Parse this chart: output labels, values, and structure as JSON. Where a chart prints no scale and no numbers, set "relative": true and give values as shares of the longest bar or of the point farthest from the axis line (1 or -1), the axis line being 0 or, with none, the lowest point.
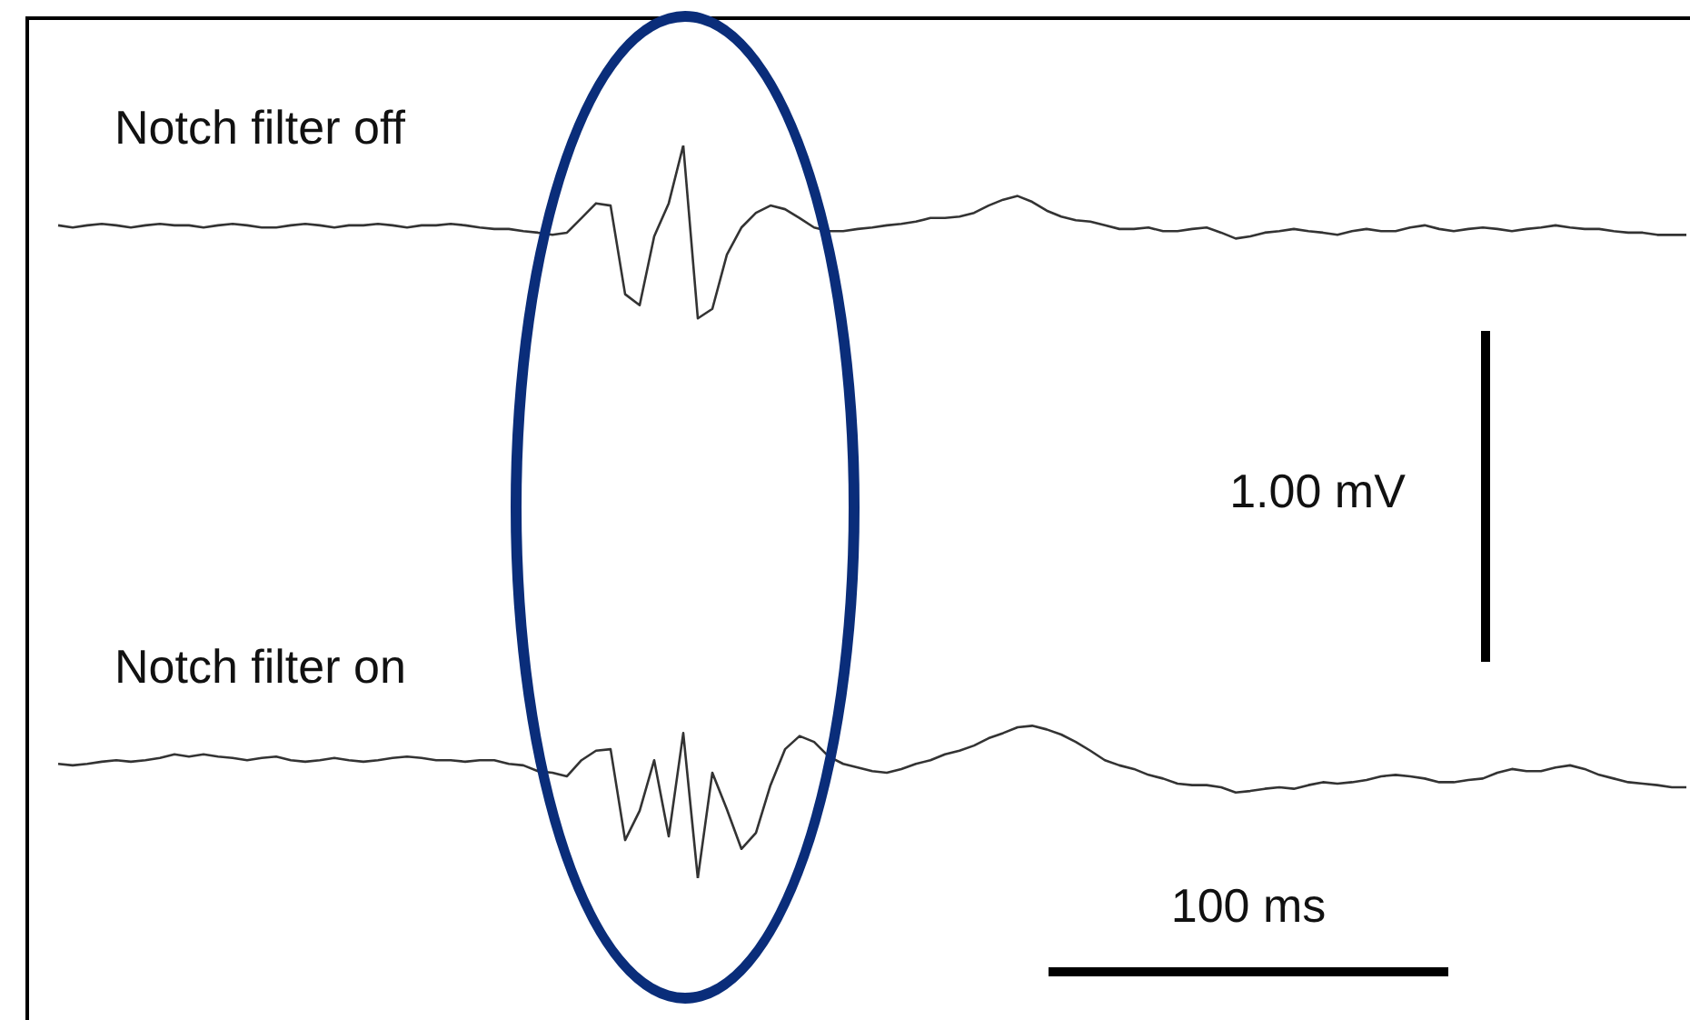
{
  "chart_data": {
    "type": "line",
    "relative": true,
    "legend": false,
    "marker": "none",
    "line_style": "solid",
    "annotations": [
      "1.00 mV",
      "100 ms"
    ],
    "categories": [
      null,
      null,
      null,
      null,
      null,
      null,
      null,
      null,
      null,
      null,
      null,
      null,
      null,
      null,
      null,
      null,
      null,
      null,
      null,
      null,
      null,
      null,
      null,
      null,
      null,
      null,
      null,
      null,
      null,
      null,
      null,
      null,
      null,
      null,
      null,
      null,
      null,
      null,
      null,
      null,
      null,
      null,
      null,
      null,
      null,
      null,
      null,
      null,
      null,
      null,
      null,
      null,
      null,
      null,
      null,
      null,
      null,
      null,
      null,
      null,
      null,
      null,
      null,
      null,
      null,
      null,
      null,
      null,
      null,
      null,
      null,
      null,
      null,
      null,
      null,
      null,
      null,
      null,
      null,
      null,
      null,
      null,
      null,
      null,
      null,
      null,
      null,
      null,
      null,
      null,
      null,
      null,
      null,
      null,
      null,
      null,
      null,
      null,
      null,
      null,
      null,
      null,
      null,
      null,
      null,
      null,
      null,
      null,
      null,
      null,
      null,
      null,
      null
    ],
    "series": [
      {
        "name": "Notch filter off",
        "color": "#333333",
        "values": [
          0.891,
          0.888,
          0.891,
          0.893,
          0.891,
          0.888,
          0.891,
          0.893,
          0.891,
          0.891,
          0.888,
          0.891,
          0.893,
          0.891,
          0.888,
          0.888,
          0.891,
          0.893,
          0.891,
          0.888,
          0.891,
          0.891,
          0.893,
          0.891,
          0.888,
          0.891,
          0.891,
          0.893,
          0.891,
          0.888,
          0.886,
          0.886,
          0.883,
          0.881,
          0.878,
          0.881,
          0.901,
          0.921,
          0.918,
          0.797,
          0.782,
          0.876,
          0.921,
          1,
          0.764,
          0.777,
          0.851,
          0.888,
          0.908,
          0.918,
          0.913,
          0.901,
          0.888,
          0.883,
          0.883,
          0.886,
          0.888,
          0.891,
          0.893,
          0.896,
          0.901,
          0.901,
          0.903,
          0.908,
          0.918,
          0.926,
          0.931,
          0.923,
          0.911,
          0.903,
          0.898,
          0.896,
          0.891,
          0.886,
          0.886,
          0.888,
          0.883,
          0.883,
          0.886,
          0.888,
          0.881,
          0.873,
          0.876,
          0.881,
          0.883,
          0.886,
          0.883,
          0.881,
          0.878,
          0.883,
          0.886,
          0.883,
          0.883,
          0.888,
          0.891,
          0.886,
          0.883,
          0.886,
          0.888,
          0.886,
          0.883,
          0.886,
          0.888,
          0.891,
          0.888,
          0.886,
          0.886,
          0.883,
          0.881,
          0.881,
          0.878,
          0.878,
          0.878
        ]
      },
      {
        "name": "Notch filter on",
        "color": "#333333",
        "values": [
          0.156,
          0.154,
          0.156,
          0.159,
          0.161,
          0.159,
          0.161,
          0.164,
          0.169,
          0.166,
          0.169,
          0.166,
          0.164,
          0.161,
          0.164,
          0.166,
          0.161,
          0.159,
          0.161,
          0.164,
          0.161,
          0.159,
          0.161,
          0.164,
          0.166,
          0.164,
          0.161,
          0.161,
          0.159,
          0.161,
          0.161,
          0.156,
          0.154,
          0.146,
          0.144,
          0.139,
          0.161,
          0.174,
          0.176,
          0.052,
          0.092,
          0.161,
          0.057,
          0.198,
          0,
          0.144,
          0.094,
          0.04,
          0.062,
          0.127,
          0.176,
          0.194,
          0.186,
          0.166,
          0.156,
          0.151,
          0.146,
          0.144,
          0.149,
          0.156,
          0.161,
          0.169,
          0.174,
          0.181,
          0.191,
          0.198,
          0.206,
          0.208,
          0.203,
          0.196,
          0.186,
          0.174,
          0.161,
          0.154,
          0.149,
          0.141,
          0.136,
          0.129,
          0.127,
          0.127,
          0.124,
          0.117,
          0.119,
          0.122,
          0.124,
          0.122,
          0.127,
          0.131,
          0.129,
          0.131,
          0.134,
          0.139,
          0.141,
          0.139,
          0.136,
          0.131,
          0.131,
          0.134,
          0.136,
          0.144,
          0.149,
          0.146,
          0.146,
          0.151,
          0.154,
          0.149,
          0.141,
          0.136,
          0.131,
          0.129,
          0.127,
          0.124,
          0.124
        ]
      }
    ]
  }
}
